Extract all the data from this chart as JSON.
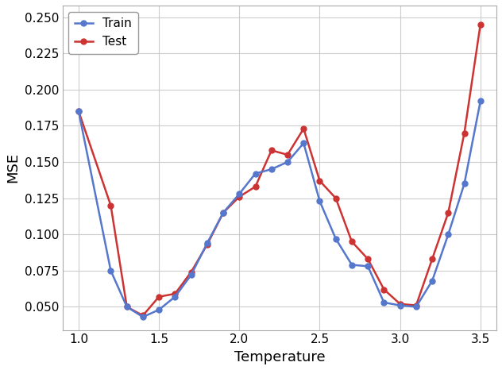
{
  "temperature": [
    1.0,
    1.2,
    1.3,
    1.4,
    1.5,
    1.6,
    1.7,
    1.8,
    1.9,
    2.0,
    2.1,
    2.2,
    2.3,
    2.4,
    2.5,
    2.6,
    2.7,
    2.8,
    2.9,
    3.0,
    3.1,
    3.2,
    3.3,
    3.4,
    3.5
  ],
  "train": [
    0.185,
    0.075,
    0.05,
    0.043,
    0.048,
    0.057,
    0.072,
    0.094,
    0.115,
    0.128,
    0.142,
    0.145,
    0.15,
    0.163,
    0.123,
    0.097,
    0.079,
    0.078,
    0.053,
    0.051,
    0.05,
    0.068,
    0.1,
    0.135,
    0.192
  ],
  "test": [
    0.185,
    0.12,
    0.05,
    0.044,
    0.057,
    0.059,
    0.074,
    0.093,
    0.115,
    0.126,
    0.133,
    0.158,
    0.155,
    0.173,
    0.137,
    0.125,
    0.095,
    0.083,
    0.062,
    0.052,
    0.051,
    0.083,
    0.115,
    0.17,
    0.245
  ],
  "train_color": "#5577cc",
  "test_color": "#cc3333",
  "xlabel": "Temperature",
  "ylabel": "MSE",
  "ylim": [
    0.034,
    0.258
  ],
  "xlim": [
    0.9,
    3.6
  ],
  "yticks": [
    0.05,
    0.075,
    0.1,
    0.125,
    0.15,
    0.175,
    0.2,
    0.225,
    0.25
  ],
  "xticks": [
    1.0,
    1.5,
    2.0,
    2.5,
    3.0,
    3.5
  ],
  "grid_color": "#cccccc",
  "marker": "o",
  "markersize": 5,
  "linewidth": 1.8,
  "legend_loc": "upper left",
  "train_label": "Train",
  "test_label": "Test",
  "background_color": "#ffffff",
  "figwidth": 6.32,
  "figheight": 4.66,
  "dpi": 100
}
